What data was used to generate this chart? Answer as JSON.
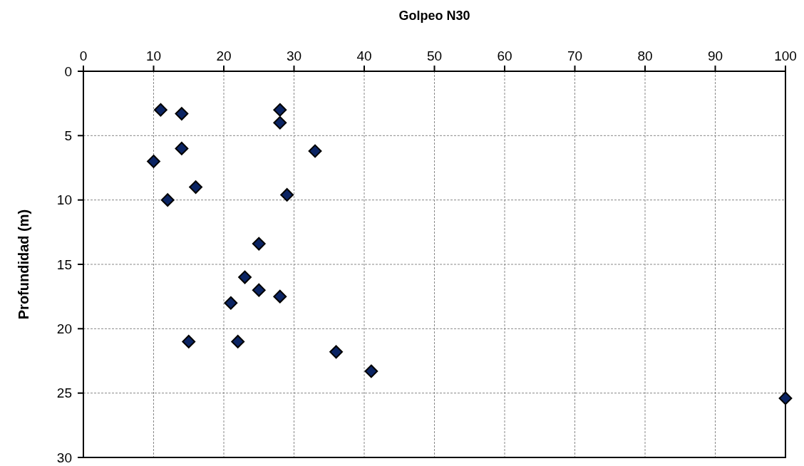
{
  "chart_data": {
    "type": "scatter",
    "xlabel": "Golpeo N30",
    "ylabel": "Profundidad (m)",
    "x": [
      11,
      14,
      28,
      28,
      14,
      33,
      10,
      16,
      12,
      29,
      25,
      23,
      25,
      28,
      21,
      15,
      22,
      36,
      41,
      100
    ],
    "series": [
      {
        "color": "#0b2463",
        "values": [
          3,
          3.3,
          3,
          4,
          6,
          6.2,
          7,
          9,
          10,
          9.6,
          13.4,
          16,
          17,
          17.5,
          18,
          21,
          21,
          21.8,
          23.3,
          25.4
        ]
      }
    ],
    "xlim": [
      0,
      100
    ],
    "xticks": [
      0,
      10,
      20,
      30,
      40,
      50,
      60,
      70,
      80,
      90,
      100
    ],
    "ylim": [
      30,
      0
    ],
    "yticks": [
      0,
      5,
      10,
      15,
      20,
      25,
      30
    ],
    "grid": true,
    "marker": "diamond"
  }
}
